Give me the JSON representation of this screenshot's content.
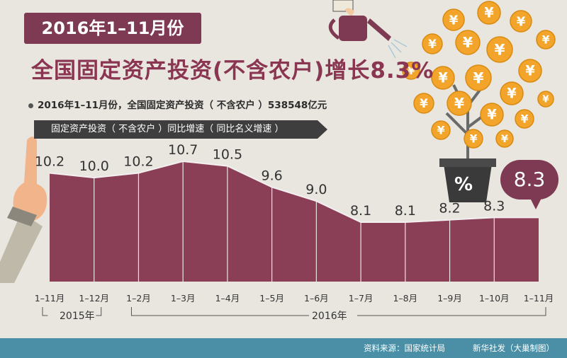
{
  "header": {
    "date_banner": "2016年1–11月份",
    "headline": "全国固定资产投资(不含农户)增长8.3%",
    "subline": "2016年1–11月份，全国固定资产投资（ 不含农户 ）538548亿元"
  },
  "legend_bar": "固定资产投资（ 不含农户 ）同比增速（ 同比名义增速 ）",
  "callout": "8.3",
  "years": {
    "y2015": "2015年",
    "y2016": "2016年"
  },
  "pot_symbol": "%",
  "coin_symbol": "¥",
  "footer": {
    "source": "资料来源：国家统计局",
    "credit": "新华社发（大巢制图）"
  },
  "colors": {
    "accent": "#7d3a52",
    "area_fill": "#8a3f57",
    "footer": "#4a8fa6",
    "coin": "#f2a52a"
  },
  "icons": [
    "pointing-hand-icon",
    "watering-can-icon",
    "money-tree-icon",
    "xinhua-logo-icon"
  ],
  "chart_data": {
    "type": "area",
    "categories": [
      "1–11月",
      "1–12月",
      "1–2月",
      "1–3月",
      "1–4月",
      "1–5月",
      "1–6月",
      "1–7月",
      "1–8月",
      "1–9月",
      "1–10月",
      "1–11月"
    ],
    "series": [
      {
        "values": [
          10.2,
          10.0,
          10.2,
          10.7,
          10.5,
          9.6,
          9.0,
          8.1,
          8.1,
          8.2,
          8.3,
          8.3
        ]
      }
    ],
    "data_labels": [
      "10.2",
      "10.0",
      "10.2",
      "10.7",
      "10.5",
      "9.6",
      "9.0",
      "8.1",
      "8.1",
      "8.2",
      "8.3",
      ""
    ],
    "title": "固定资产投资（ 不含农户 ）同比增速（ 同比名义增速 ）",
    "xlabel": "",
    "ylabel": "",
    "grid": false
  }
}
